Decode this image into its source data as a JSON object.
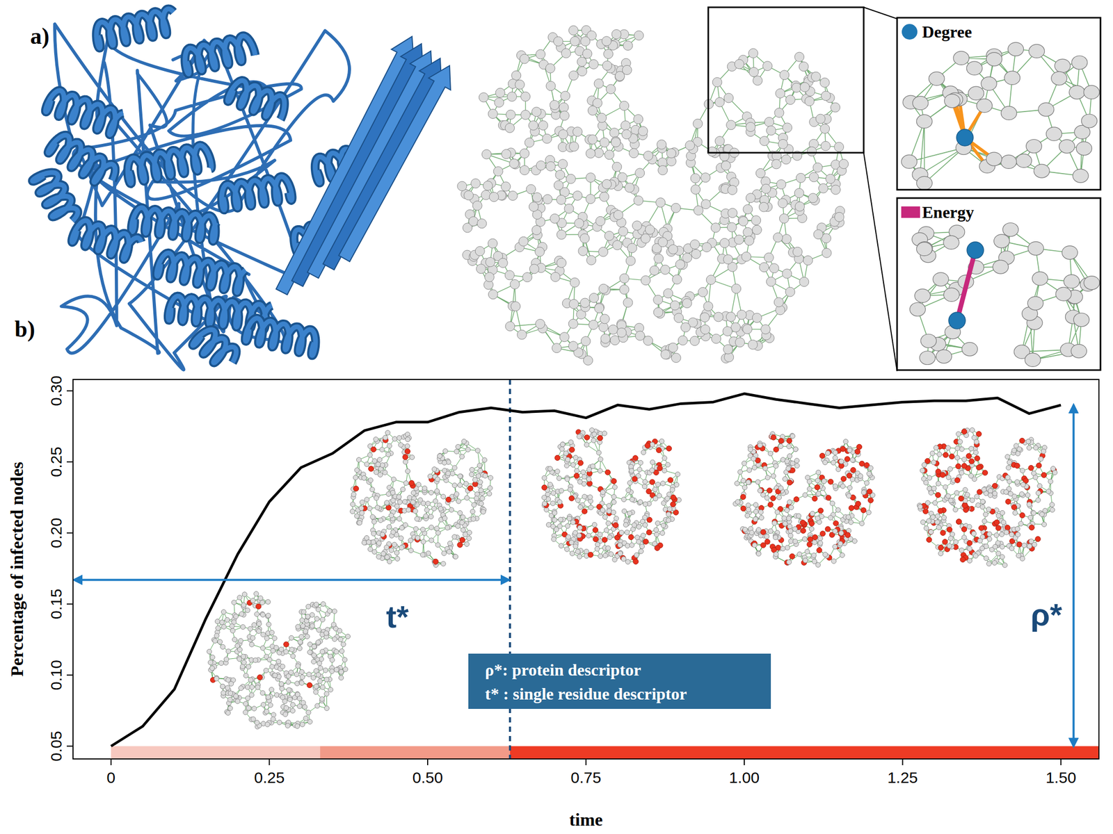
{
  "chart_data": {
    "type": "line",
    "panel_label": "b)",
    "x_label": "time",
    "y_label": "Percentage of infected nodes",
    "x": [
      0,
      0.05,
      0.1,
      0.15,
      0.2,
      0.25,
      0.3,
      0.35,
      0.4,
      0.45,
      0.5,
      0.55,
      0.6,
      0.65,
      0.7,
      0.75,
      0.8,
      0.85,
      0.9,
      0.95,
      1.0,
      1.05,
      1.1,
      1.15,
      1.2,
      1.25,
      1.3,
      1.35,
      1.4,
      1.45,
      1.5
    ],
    "values": [
      0.05,
      0.064,
      0.09,
      0.14,
      0.185,
      0.222,
      0.246,
      0.256,
      0.272,
      0.278,
      0.278,
      0.285,
      0.288,
      0.285,
      0.286,
      0.281,
      0.29,
      0.287,
      0.291,
      0.292,
      0.298,
      0.294,
      0.291,
      0.288,
      0.29,
      0.292,
      0.293,
      0.293,
      0.295,
      0.284,
      0.29
    ],
    "color": "#000000",
    "xlim": [
      -0.06,
      1.56
    ],
    "ylim": [
      0.041,
      0.308
    ],
    "xticks": [
      0,
      0.25,
      {
        "value": 0.5,
        "label": "0.50"
      },
      0.75,
      {
        "value": 1,
        "label": "1.00"
      },
      1.25,
      {
        "value": 1.5,
        "label": "1.50"
      }
    ],
    "yticks": [
      0.05,
      {
        "value": 0.1,
        "label": "0.10"
      },
      0.15,
      {
        "value": 0.2,
        "label": "0.20"
      },
      0.25,
      {
        "value": 0.3,
        "label": "0.30"
      }
    ],
    "grid": false,
    "bands": {
      "y": [
        0.041,
        0.05
      ],
      "segments": [
        {
          "start": 0,
          "end": 0.33,
          "color": "#f7c8bf"
        },
        {
          "start": 0.33,
          "end": 0.63,
          "color": "#f29a88"
        },
        {
          "start": 0.63,
          "end": 1.56,
          "color": "#ee3b24"
        }
      ]
    },
    "annotations": {
      "t_star": {
        "label": "t*",
        "from": -0.06,
        "to": 0.63,
        "y": 0.167
      },
      "rho_star": {
        "label": "ρ*",
        "x": 1.52,
        "from": 0.05,
        "to": 0.29
      },
      "legend_box": [
        "ρ*: protein descriptor",
        "t* : single residue descriptor"
      ]
    }
  },
  "panel_a": {
    "label": "a)",
    "insets": [
      {
        "label": "Degree",
        "color": "#1f78b4"
      },
      {
        "label": "Energy",
        "color": "#c7287c"
      }
    ]
  }
}
